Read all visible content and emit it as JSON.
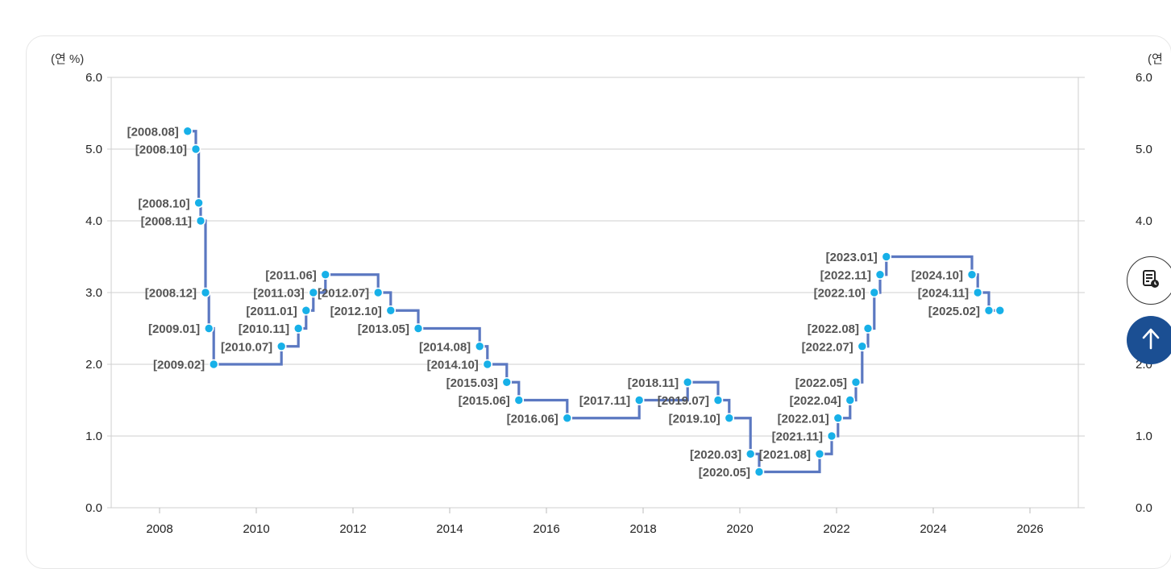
{
  "chart_data": {
    "type": "line",
    "step": true,
    "unit_label": "(연 %)",
    "unit_label_right_partial": "(연",
    "ylim": [
      0,
      6
    ],
    "yticks": [
      "0.0",
      "1.0",
      "2.0",
      "3.0",
      "4.0",
      "5.0",
      "6.0"
    ],
    "xlim": [
      2007,
      2027
    ],
    "xticks": [
      "2008",
      "2010",
      "2012",
      "2014",
      "2016",
      "2018",
      "2020",
      "2022",
      "2024",
      "2026"
    ],
    "grid": true,
    "line_color": "#5b78c1",
    "marker_color": "#17b0e8",
    "points": [
      {
        "label": "[2008.08]",
        "x": 2008.58,
        "y": 5.25
      },
      {
        "label": "[2008.10]",
        "x": 2008.75,
        "y": 5.0
      },
      {
        "label": "[2008.10]",
        "x": 2008.81,
        "y": 4.25
      },
      {
        "label": "[2008.11]",
        "x": 2008.85,
        "y": 4.0
      },
      {
        "label": "[2008.12]",
        "x": 2008.95,
        "y": 3.0
      },
      {
        "label": "[2009.01]",
        "x": 2009.02,
        "y": 2.5
      },
      {
        "label": "[2009.02]",
        "x": 2009.12,
        "y": 2.0
      },
      {
        "label": "[2010.07]",
        "x": 2010.52,
        "y": 2.25
      },
      {
        "label": "[2010.11]",
        "x": 2010.87,
        "y": 2.5
      },
      {
        "label": "[2011.01]",
        "x": 2011.03,
        "y": 2.75
      },
      {
        "label": "[2011.03]",
        "x": 2011.18,
        "y": 3.0
      },
      {
        "label": "[2011.06]",
        "x": 2011.43,
        "y": 3.25
      },
      {
        "label": "[2012.07]",
        "x": 2012.52,
        "y": 3.0
      },
      {
        "label": "[2012.10]",
        "x": 2012.78,
        "y": 2.75
      },
      {
        "label": "[2013.05]",
        "x": 2013.35,
        "y": 2.5
      },
      {
        "label": "[2014.08]",
        "x": 2014.62,
        "y": 2.25
      },
      {
        "label": "[2014.10]",
        "x": 2014.78,
        "y": 2.0
      },
      {
        "label": "[2015.03]",
        "x": 2015.18,
        "y": 1.75
      },
      {
        "label": "[2015.06]",
        "x": 2015.43,
        "y": 1.5
      },
      {
        "label": "[2016.06]",
        "x": 2016.43,
        "y": 1.25
      },
      {
        "label": "[2017.11]",
        "x": 2017.92,
        "y": 1.5
      },
      {
        "label": "[2018.11]",
        "x": 2018.92,
        "y": 1.75
      },
      {
        "label": "[2019.07]",
        "x": 2019.55,
        "y": 1.5
      },
      {
        "label": "[2019.10]",
        "x": 2019.78,
        "y": 1.25
      },
      {
        "label": "[2020.03]",
        "x": 2020.22,
        "y": 0.75
      },
      {
        "label": "[2020.05]",
        "x": 2020.4,
        "y": 0.5
      },
      {
        "label": "[2021.08]",
        "x": 2021.65,
        "y": 0.75
      },
      {
        "label": "[2021.11]",
        "x": 2021.9,
        "y": 1.0
      },
      {
        "label": "[2022.01]",
        "x": 2022.03,
        "y": 1.25
      },
      {
        "label": "[2022.04]",
        "x": 2022.28,
        "y": 1.5
      },
      {
        "label": "[2022.05]",
        "x": 2022.4,
        "y": 1.75
      },
      {
        "label": "[2022.07]",
        "x": 2022.53,
        "y": 2.25
      },
      {
        "label": "[2022.08]",
        "x": 2022.65,
        "y": 2.5
      },
      {
        "label": "[2022.10]",
        "x": 2022.78,
        "y": 3.0
      },
      {
        "label": "[2022.11]",
        "x": 2022.9,
        "y": 3.25
      },
      {
        "label": "[2023.01]",
        "x": 2023.03,
        "y": 3.5
      },
      {
        "label": "[2024.10]",
        "x": 2024.8,
        "y": 3.25
      },
      {
        "label": "[2024.11]",
        "x": 2024.92,
        "y": 3.0
      },
      {
        "label": "[2025.02]",
        "x": 2025.15,
        "y": 2.75
      },
      {
        "label": "",
        "x": 2025.38,
        "y": 2.75
      }
    ]
  },
  "right_axis_ticks_partial": [
    "0.0",
    "1.0",
    "2.0",
    "4.0",
    "5.0",
    "6.0"
  ],
  "buttons": {
    "history_icon": "document-clock-icon",
    "top_icon": "arrow-up-icon"
  }
}
